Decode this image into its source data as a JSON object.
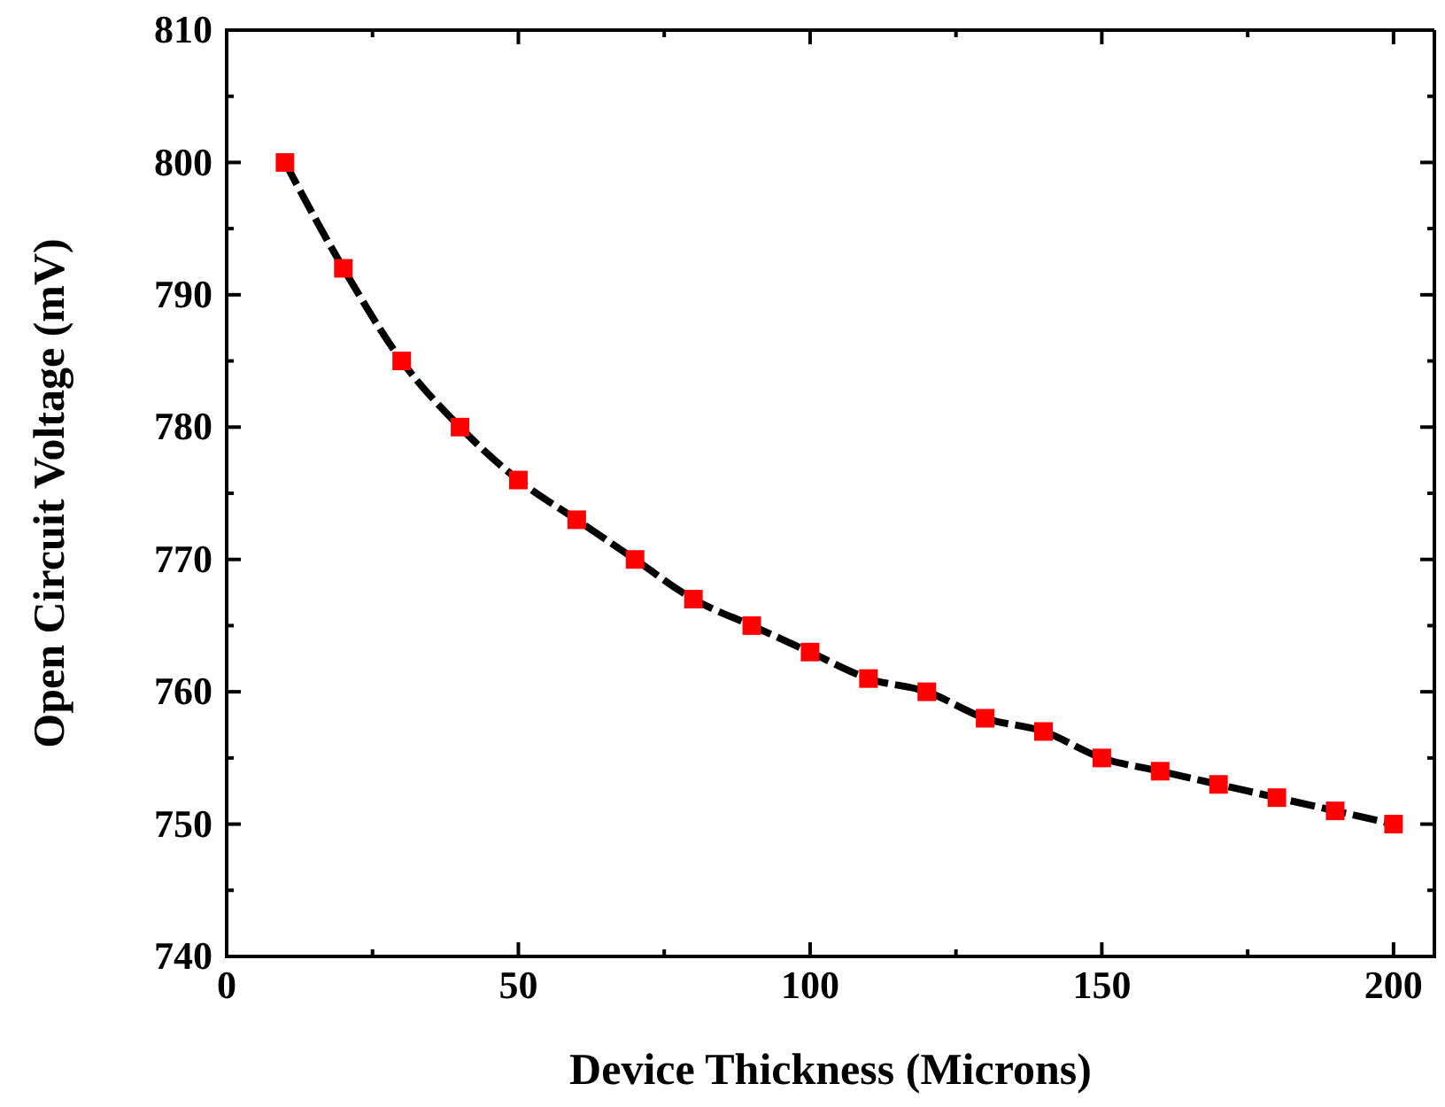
{
  "chart_data": {
    "type": "line",
    "xlabel": "Device Thickness (Microns)",
    "ylabel": "Open Circuit Voltage (mV)",
    "x": [
      10,
      20,
      30,
      40,
      50,
      60,
      70,
      80,
      90,
      100,
      110,
      120,
      130,
      140,
      150,
      160,
      170,
      180,
      190,
      200
    ],
    "series": [
      {
        "color": "#000000",
        "line_style": "dashed",
        "values": [
          800,
          792,
          785,
          780,
          776,
          773,
          770,
          767,
          765,
          763,
          761,
          760,
          758,
          757,
          755,
          754,
          753,
          752,
          751,
          750
        ]
      },
      {
        "type": "scatter",
        "color": "#ff0000",
        "marker": "square",
        "values": [
          800,
          792,
          785,
          780,
          776,
          773,
          770,
          767,
          765,
          763,
          761,
          760,
          758,
          757,
          755,
          754,
          753,
          752,
          751,
          750
        ]
      }
    ],
    "xlim": [
      0,
      207
    ],
    "ylim": [
      740,
      810
    ],
    "xticks": [
      0,
      {
        "value": 25,
        "label": null
      },
      50,
      {
        "value": 75,
        "label": null
      },
      100,
      {
        "value": 125,
        "label": null
      },
      150,
      {
        "value": 175,
        "label": null
      },
      200
    ],
    "yticks": [
      740,
      {
        "value": 745,
        "label": null
      },
      750,
      {
        "value": 755,
        "label": null
      },
      760,
      {
        "value": 765,
        "label": null
      },
      770,
      {
        "value": 775,
        "label": null
      },
      780,
      {
        "value": 785,
        "label": null
      },
      790,
      {
        "value": 795,
        "label": null
      },
      800,
      {
        "value": 805,
        "label": null
      },
      810
    ],
    "grid": false
  }
}
